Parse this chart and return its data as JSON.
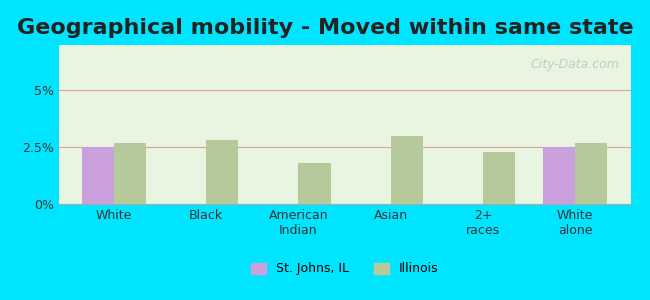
{
  "title": "Geographical mobility - Moved within same state",
  "categories": [
    "White",
    "Black",
    "American\nIndian",
    "Asian",
    "2+\nraces",
    "White\nalone"
  ],
  "stjohns_values": [
    2.5,
    0,
    0,
    0,
    0,
    2.5
  ],
  "illinois_values": [
    2.7,
    2.8,
    1.8,
    3.0,
    2.3,
    2.7
  ],
  "bar_color_stjohns": "#c9a0dc",
  "bar_color_illinois": "#b5c99a",
  "ylim": [
    0,
    7
  ],
  "yticks": [
    0,
    2.5,
    5
  ],
  "ytick_labels": [
    "0%",
    "2.5%",
    "5%"
  ],
  "background_outer": "#00e5ff",
  "background_plot": "#e8f5e0",
  "grid_color": "#e0a0a0",
  "title_fontsize": 16,
  "legend_label_stjohns": "St. Johns, IL",
  "legend_label_illinois": "Illinois",
  "bar_width": 0.35,
  "watermark": "City-Data.com"
}
